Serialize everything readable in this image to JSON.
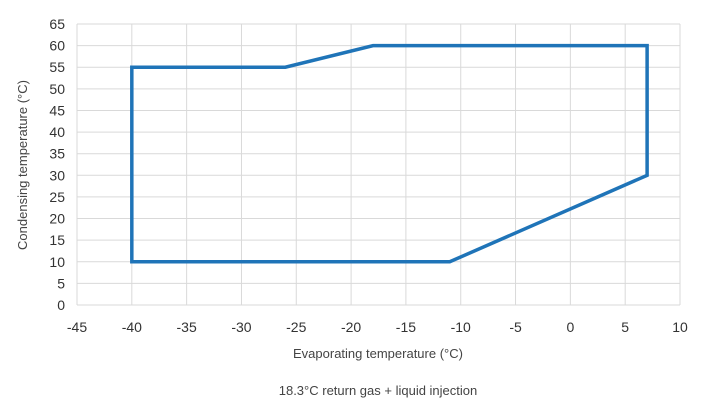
{
  "chart_data": {
    "type": "line",
    "title": "",
    "caption": "18.3°C return gas + liquid injection",
    "xlabel": "Evaporating temperature (°C)",
    "ylabel": "Condensing temperature (°C)",
    "xlim": [
      -45,
      10
    ],
    "ylim": [
      0,
      65
    ],
    "x_ticks": [
      -45,
      -40,
      -35,
      -30,
      -25,
      -20,
      -15,
      -10,
      -5,
      0,
      5,
      10
    ],
    "y_ticks": [
      0,
      5,
      10,
      15,
      20,
      25,
      30,
      35,
      40,
      45,
      50,
      55,
      60,
      65
    ],
    "grid": true,
    "legend": "none",
    "series": [
      {
        "color": "#1f74b8",
        "closed": true,
        "points": [
          {
            "x": -40,
            "y": 55
          },
          {
            "x": -26,
            "y": 55
          },
          {
            "x": -18,
            "y": 60
          },
          {
            "x": 7,
            "y": 60
          },
          {
            "x": 7,
            "y": 30
          },
          {
            "x": -11,
            "y": 10
          },
          {
            "x": -40,
            "y": 10
          }
        ]
      }
    ]
  }
}
